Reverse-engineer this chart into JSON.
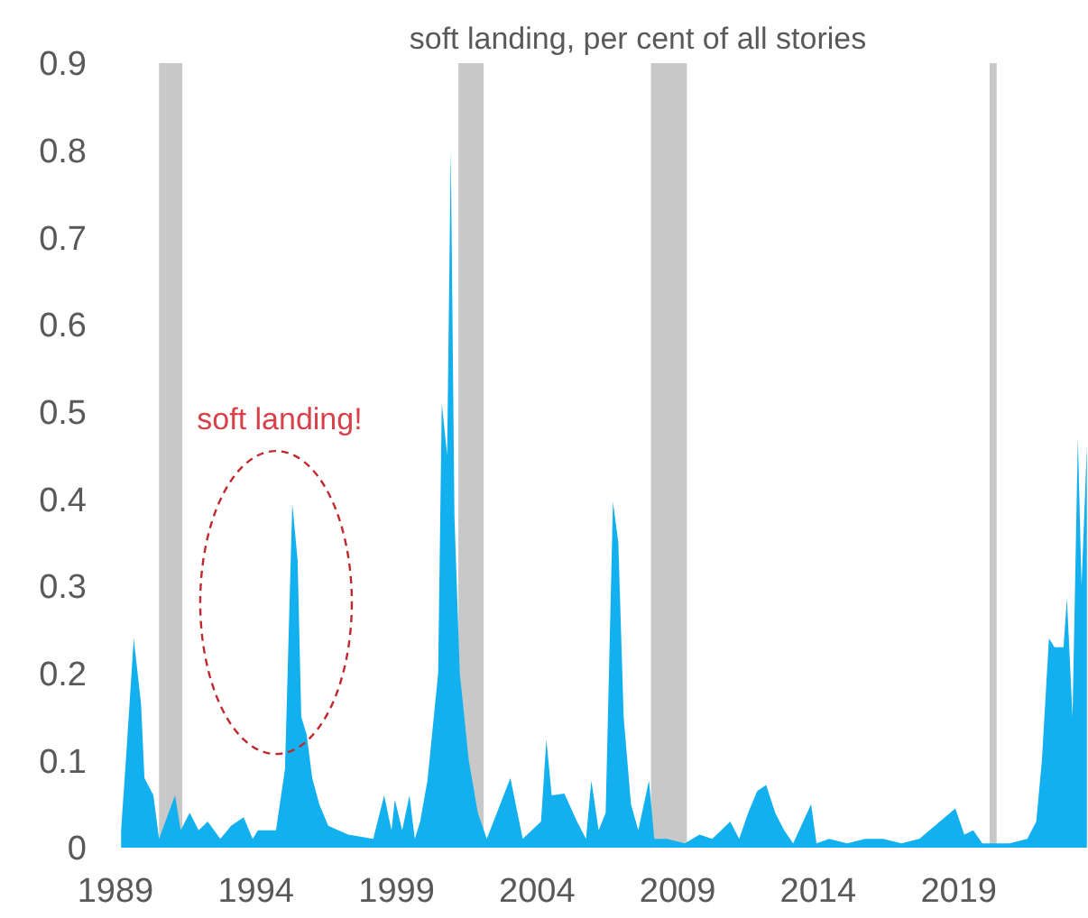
{
  "chart_data": {
    "type": "area",
    "title": "soft landing, per cent of all stories",
    "x": [
      1989.2,
      1989.39,
      1989.65,
      1989.91,
      1990.03,
      1990.35,
      1990.55,
      1991.12,
      1991.32,
      1991.64,
      1991.96,
      1992.28,
      1992.73,
      1993.11,
      1993.56,
      1993.88,
      1994.07,
      1994.71,
      1995.03,
      1995.29,
      1995.48,
      1995.61,
      1995.8,
      1996.0,
      1996.25,
      1996.57,
      1997.28,
      1998.17,
      1998.56,
      1998.82,
      1998.94,
      1999.2,
      1999.46,
      1999.65,
      1999.84,
      2000.1,
      2000.48,
      2000.61,
      2000.8,
      2000.93,
      2001.06,
      2001.25,
      2001.57,
      2001.89,
      2002.21,
      2003.05,
      2003.49,
      2004.14,
      2004.33,
      2004.52,
      2004.97,
      2005.42,
      2005.74,
      2005.93,
      2006.19,
      2006.44,
      2006.7,
      2006.89,
      2007.08,
      2007.34,
      2007.6,
      2007.98,
      2008.17,
      2008.62,
      2009.26,
      2009.78,
      2010.23,
      2010.55,
      2010.87,
      2011.19,
      2011.51,
      2011.83,
      2012.15,
      2012.47,
      2012.79,
      2013.11,
      2013.75,
      2013.94,
      2014.39,
      2015.03,
      2015.67,
      2016.32,
      2016.96,
      2017.6,
      2018.88,
      2019.2,
      2019.52,
      2019.84,
      2020.8,
      2021.44,
      2021.76,
      2021.96,
      2022.21,
      2022.41,
      2022.73,
      2022.85,
      2023.05,
      2023.24,
      2023.37,
      2023.56
    ],
    "series": [
      {
        "color": "#12b0ee",
        "values": [
          0.02,
          0.11,
          0.24,
          0.165,
          0.08,
          0.06,
          0.01,
          0.06,
          0.02,
          0.04,
          0.02,
          0.03,
          0.01,
          0.025,
          0.035,
          0.01,
          0.02,
          0.02,
          0.09,
          0.395,
          0.33,
          0.15,
          0.13,
          0.08,
          0.05,
          0.025,
          0.015,
          0.01,
          0.06,
          0.02,
          0.055,
          0.02,
          0.06,
          0.01,
          0.03,
          0.077,
          0.2,
          0.51,
          0.45,
          0.8,
          0.38,
          0.2,
          0.1,
          0.04,
          0.01,
          0.08,
          0.01,
          0.03,
          0.124,
          0.06,
          0.062,
          0.03,
          0.01,
          0.077,
          0.02,
          0.04,
          0.397,
          0.35,
          0.15,
          0.05,
          0.02,
          0.077,
          0.01,
          0.01,
          0.005,
          0.015,
          0.01,
          0.02,
          0.03,
          0.01,
          0.04,
          0.065,
          0.072,
          0.04,
          0.02,
          0.005,
          0.05,
          0.005,
          0.01,
          0.005,
          0.01,
          0.01,
          0.005,
          0.01,
          0.045,
          0.015,
          0.02,
          0.005,
          0.005,
          0.01,
          0.03,
          0.1,
          0.24,
          0.23,
          0.23,
          0.286,
          0.15,
          0.47,
          0.3,
          0.46
        ]
      }
    ],
    "xlim": [
      1989,
      2023.6
    ],
    "xticks": [
      1989,
      1994,
      1999,
      2004,
      2009,
      2014,
      2019
    ],
    "ylim": [
      0,
      0.9
    ],
    "yticks": [
      0,
      0.1,
      0.2,
      0.3,
      0.4,
      0.5,
      0.6,
      0.7,
      0.8,
      0.9
    ],
    "bands": [
      {
        "axis": "x",
        "from": 1990.55,
        "to": 1991.38,
        "color": "#c8c8c8"
      },
      {
        "axis": "x",
        "from": 2001.2,
        "to": 2002.1,
        "color": "#c8c8c8"
      },
      {
        "axis": "x",
        "from": 2008.05,
        "to": 2009.33,
        "color": "#c8c8c8"
      },
      {
        "axis": "x",
        "from": 2020.1,
        "to": 2020.35,
        "color": "#c8c8c8"
      }
    ],
    "annotations": [
      {
        "text": "soft landing!",
        "x": 1995.29,
        "y": 0.395
      }
    ]
  }
}
